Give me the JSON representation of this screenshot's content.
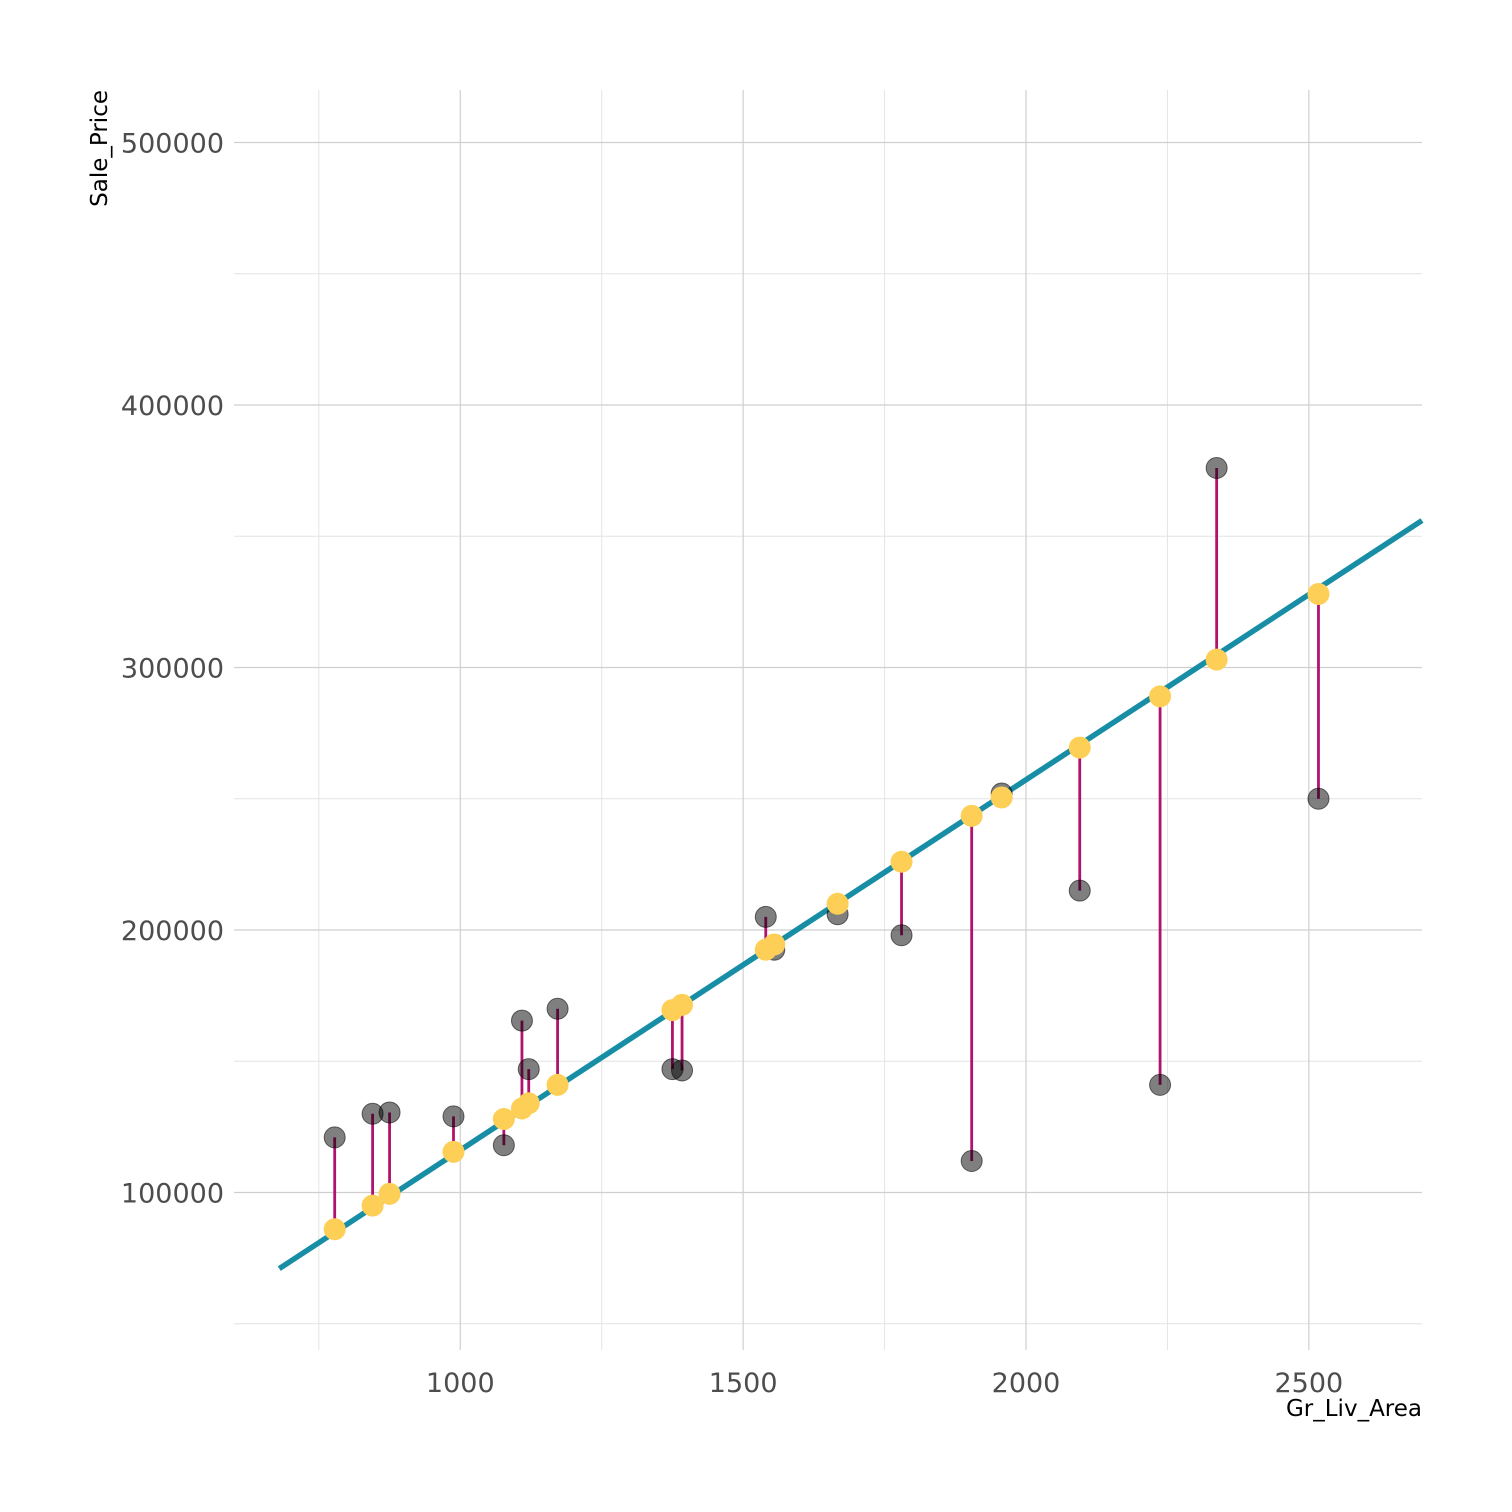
{
  "chart_data": {
    "type": "scatter",
    "xlabel": "Gr_Liv_Area",
    "ylabel": "Sale_Price",
    "xlim": [
      600,
      2700
    ],
    "ylim": [
      40000,
      520000
    ],
    "x_ticks": [
      1000,
      1500,
      2000,
      2500
    ],
    "x_tick_labels": [
      "1000",
      "1500",
      "2000",
      "2500"
    ],
    "y_ticks": [
      100000,
      200000,
      300000,
      400000,
      500000
    ],
    "y_tick_labels": [
      "100000",
      "200000",
      "300000",
      "400000",
      "500000"
    ],
    "grid": true,
    "legend": "none",
    "fit_line": {
      "x": [
        680,
        2700
      ],
      "y": [
        71000,
        356000
      ]
    },
    "points": [
      {
        "x": 778,
        "actual": 121000,
        "fitted": 86000
      },
      {
        "x": 845,
        "actual": 130000,
        "fitted": 95000
      },
      {
        "x": 875,
        "actual": 130500,
        "fitted": 99500
      },
      {
        "x": 988,
        "actual": 129000,
        "fitted": 115500
      },
      {
        "x": 1077,
        "actual": 118000,
        "fitted": 128000
      },
      {
        "x": 1109,
        "actual": 165500,
        "fitted": 132000
      },
      {
        "x": 1121,
        "actual": 147000,
        "fitted": 134000
      },
      {
        "x": 1172,
        "actual": 170000,
        "fitted": 141000
      },
      {
        "x": 1375,
        "actual": 147000,
        "fitted": 169500
      },
      {
        "x": 1392,
        "actual": 146500,
        "fitted": 171500
      },
      {
        "x": 1540,
        "actual": 205000,
        "fitted": 192500
      },
      {
        "x": 1555,
        "actual": 192500,
        "fitted": 194500
      },
      {
        "x": 1667,
        "actual": 206000,
        "fitted": 210000
      },
      {
        "x": 1780,
        "actual": 198000,
        "fitted": 226000
      },
      {
        "x": 1904,
        "actual": 112000,
        "fitted": 243500
      },
      {
        "x": 1957,
        "actual": 252000,
        "fitted": 250500
      },
      {
        "x": 2095,
        "actual": 215000,
        "fitted": 269500
      },
      {
        "x": 2237,
        "actual": 141000,
        "fitted": 289000
      },
      {
        "x": 2337,
        "actual": 376000,
        "fitted": 303000
      },
      {
        "x": 2517,
        "actual": 250000,
        "fitted": 328000
      }
    ],
    "colors": {
      "fit_line": "#178ea5",
      "residual": "#b0136d",
      "actual": "#000000",
      "fitted": "#fecf56"
    }
  }
}
